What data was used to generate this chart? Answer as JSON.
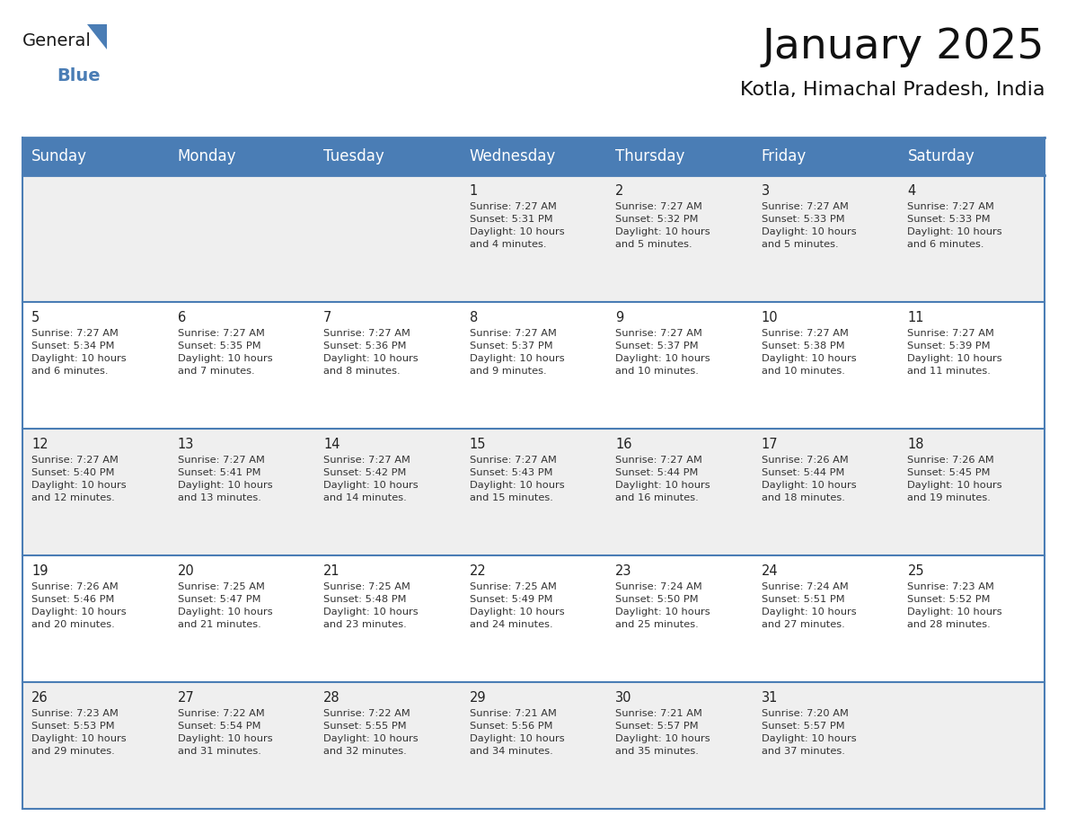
{
  "title": "January 2025",
  "subtitle": "Kotla, Himachal Pradesh, India",
  "header_bg_color": "#4a7db5",
  "header_text_color": "#FFFFFF",
  "row_bg_even": "#EFEFEF",
  "row_bg_odd": "#FFFFFF",
  "border_color": "#4a7db5",
  "row_border_color": "#4a7db5",
  "text_color": "#333333",
  "day_number_color": "#222222",
  "days_of_week": [
    "Sunday",
    "Monday",
    "Tuesday",
    "Wednesday",
    "Thursday",
    "Friday",
    "Saturday"
  ],
  "weeks": [
    [
      {
        "day": "",
        "info": ""
      },
      {
        "day": "",
        "info": ""
      },
      {
        "day": "",
        "info": ""
      },
      {
        "day": "1",
        "info": "Sunrise: 7:27 AM\nSunset: 5:31 PM\nDaylight: 10 hours\nand 4 minutes."
      },
      {
        "day": "2",
        "info": "Sunrise: 7:27 AM\nSunset: 5:32 PM\nDaylight: 10 hours\nand 5 minutes."
      },
      {
        "day": "3",
        "info": "Sunrise: 7:27 AM\nSunset: 5:33 PM\nDaylight: 10 hours\nand 5 minutes."
      },
      {
        "day": "4",
        "info": "Sunrise: 7:27 AM\nSunset: 5:33 PM\nDaylight: 10 hours\nand 6 minutes."
      }
    ],
    [
      {
        "day": "5",
        "info": "Sunrise: 7:27 AM\nSunset: 5:34 PM\nDaylight: 10 hours\nand 6 minutes."
      },
      {
        "day": "6",
        "info": "Sunrise: 7:27 AM\nSunset: 5:35 PM\nDaylight: 10 hours\nand 7 minutes."
      },
      {
        "day": "7",
        "info": "Sunrise: 7:27 AM\nSunset: 5:36 PM\nDaylight: 10 hours\nand 8 minutes."
      },
      {
        "day": "8",
        "info": "Sunrise: 7:27 AM\nSunset: 5:37 PM\nDaylight: 10 hours\nand 9 minutes."
      },
      {
        "day": "9",
        "info": "Sunrise: 7:27 AM\nSunset: 5:37 PM\nDaylight: 10 hours\nand 10 minutes."
      },
      {
        "day": "10",
        "info": "Sunrise: 7:27 AM\nSunset: 5:38 PM\nDaylight: 10 hours\nand 10 minutes."
      },
      {
        "day": "11",
        "info": "Sunrise: 7:27 AM\nSunset: 5:39 PM\nDaylight: 10 hours\nand 11 minutes."
      }
    ],
    [
      {
        "day": "12",
        "info": "Sunrise: 7:27 AM\nSunset: 5:40 PM\nDaylight: 10 hours\nand 12 minutes."
      },
      {
        "day": "13",
        "info": "Sunrise: 7:27 AM\nSunset: 5:41 PM\nDaylight: 10 hours\nand 13 minutes."
      },
      {
        "day": "14",
        "info": "Sunrise: 7:27 AM\nSunset: 5:42 PM\nDaylight: 10 hours\nand 14 minutes."
      },
      {
        "day": "15",
        "info": "Sunrise: 7:27 AM\nSunset: 5:43 PM\nDaylight: 10 hours\nand 15 minutes."
      },
      {
        "day": "16",
        "info": "Sunrise: 7:27 AM\nSunset: 5:44 PM\nDaylight: 10 hours\nand 16 minutes."
      },
      {
        "day": "17",
        "info": "Sunrise: 7:26 AM\nSunset: 5:44 PM\nDaylight: 10 hours\nand 18 minutes."
      },
      {
        "day": "18",
        "info": "Sunrise: 7:26 AM\nSunset: 5:45 PM\nDaylight: 10 hours\nand 19 minutes."
      }
    ],
    [
      {
        "day": "19",
        "info": "Sunrise: 7:26 AM\nSunset: 5:46 PM\nDaylight: 10 hours\nand 20 minutes."
      },
      {
        "day": "20",
        "info": "Sunrise: 7:25 AM\nSunset: 5:47 PM\nDaylight: 10 hours\nand 21 minutes."
      },
      {
        "day": "21",
        "info": "Sunrise: 7:25 AM\nSunset: 5:48 PM\nDaylight: 10 hours\nand 23 minutes."
      },
      {
        "day": "22",
        "info": "Sunrise: 7:25 AM\nSunset: 5:49 PM\nDaylight: 10 hours\nand 24 minutes."
      },
      {
        "day": "23",
        "info": "Sunrise: 7:24 AM\nSunset: 5:50 PM\nDaylight: 10 hours\nand 25 minutes."
      },
      {
        "day": "24",
        "info": "Sunrise: 7:24 AM\nSunset: 5:51 PM\nDaylight: 10 hours\nand 27 minutes."
      },
      {
        "day": "25",
        "info": "Sunrise: 7:23 AM\nSunset: 5:52 PM\nDaylight: 10 hours\nand 28 minutes."
      }
    ],
    [
      {
        "day": "26",
        "info": "Sunrise: 7:23 AM\nSunset: 5:53 PM\nDaylight: 10 hours\nand 29 minutes."
      },
      {
        "day": "27",
        "info": "Sunrise: 7:22 AM\nSunset: 5:54 PM\nDaylight: 10 hours\nand 31 minutes."
      },
      {
        "day": "28",
        "info": "Sunrise: 7:22 AM\nSunset: 5:55 PM\nDaylight: 10 hours\nand 32 minutes."
      },
      {
        "day": "29",
        "info": "Sunrise: 7:21 AM\nSunset: 5:56 PM\nDaylight: 10 hours\nand 34 minutes."
      },
      {
        "day": "30",
        "info": "Sunrise: 7:21 AM\nSunset: 5:57 PM\nDaylight: 10 hours\nand 35 minutes."
      },
      {
        "day": "31",
        "info": "Sunrise: 7:20 AM\nSunset: 5:57 PM\nDaylight: 10 hours\nand 37 minutes."
      },
      {
        "day": "",
        "info": ""
      }
    ]
  ],
  "logo_text_general": "General",
  "logo_text_blue": "Blue",
  "logo_triangle_color": "#4a7db5",
  "title_fontsize": 34,
  "subtitle_fontsize": 16,
  "header_fontsize": 12,
  "day_number_fontsize": 10.5,
  "cell_text_fontsize": 8.2
}
